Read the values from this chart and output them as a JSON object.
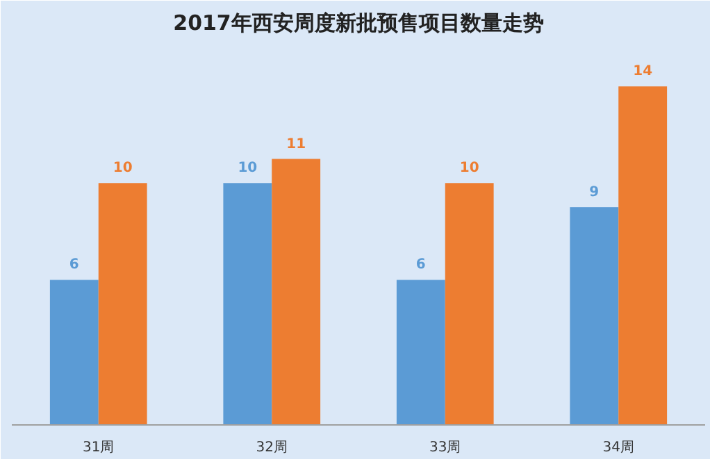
{
  "chart_data": {
    "type": "bar",
    "title": "2017年西安周度新批预售项目数量走势",
    "categories": [
      "31周",
      "32周",
      "33周",
      "34周"
    ],
    "series": [
      {
        "color": "#5b9bd5",
        "values": [
          6,
          10,
          6,
          9
        ]
      },
      {
        "color": "#ed7d31",
        "values": [
          10,
          11,
          10,
          14
        ]
      }
    ],
    "data_labels": true
  }
}
